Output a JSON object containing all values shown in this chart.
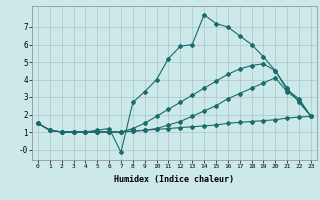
{
  "title": "",
  "xlabel": "Humidex (Indice chaleur)",
  "xlim": [
    -0.5,
    23.5
  ],
  "ylim": [
    -0.6,
    8.2
  ],
  "xticks": [
    0,
    1,
    2,
    3,
    4,
    5,
    6,
    7,
    8,
    9,
    10,
    11,
    12,
    13,
    14,
    15,
    16,
    17,
    18,
    19,
    20,
    21,
    22,
    23
  ],
  "yticks": [
    0,
    1,
    2,
    3,
    4,
    5,
    6,
    7
  ],
  "ytick_labels": [
    "-0",
    "1",
    "2",
    "3",
    "4",
    "5",
    "6",
    "7"
  ],
  "bg_color": "#cde8e8",
  "line_color": "#1a6b6b",
  "grid_color": "#a8c8c8",
  "lines": [
    {
      "x": [
        0,
        1,
        2,
        3,
        4,
        5,
        6,
        7,
        8,
        9,
        10,
        11,
        12,
        13,
        14,
        15,
        16,
        17,
        18,
        19,
        20,
        21,
        22,
        23
      ],
      "y": [
        1.5,
        1.1,
        1.0,
        1.0,
        1.0,
        1.0,
        1.0,
        1.0,
        1.05,
        1.1,
        1.15,
        1.2,
        1.25,
        1.3,
        1.35,
        1.4,
        1.5,
        1.55,
        1.6,
        1.65,
        1.7,
        1.8,
        1.85,
        1.9
      ]
    },
    {
      "x": [
        0,
        1,
        2,
        3,
        4,
        5,
        6,
        7,
        8,
        9,
        10,
        11,
        12,
        13,
        14,
        15,
        16,
        17,
        18,
        19,
        20,
        21,
        22,
        23
      ],
      "y": [
        1.5,
        1.1,
        1.0,
        1.0,
        1.0,
        1.1,
        1.2,
        -0.15,
        2.7,
        3.3,
        4.0,
        5.2,
        5.9,
        6.0,
        7.7,
        7.2,
        7.0,
        6.5,
        6.0,
        5.3,
        4.5,
        3.5,
        2.7,
        1.9
      ]
    },
    {
      "x": [
        0,
        1,
        2,
        3,
        4,
        5,
        6,
        7,
        8,
        9,
        10,
        11,
        12,
        13,
        14,
        15,
        16,
        17,
        18,
        19,
        20,
        21,
        22,
        23
      ],
      "y": [
        1.5,
        1.1,
        1.0,
        1.0,
        1.0,
        1.0,
        1.0,
        1.0,
        1.2,
        1.5,
        1.9,
        2.3,
        2.7,
        3.1,
        3.5,
        3.9,
        4.3,
        4.6,
        4.8,
        4.9,
        4.5,
        3.4,
        2.9,
        1.9
      ]
    },
    {
      "x": [
        0,
        1,
        2,
        3,
        4,
        5,
        6,
        7,
        8,
        9,
        10,
        11,
        12,
        13,
        14,
        15,
        16,
        17,
        18,
        19,
        20,
        21,
        22,
        23
      ],
      "y": [
        1.5,
        1.1,
        1.0,
        1.0,
        1.0,
        1.0,
        1.0,
        1.0,
        1.05,
        1.1,
        1.2,
        1.4,
        1.6,
        1.9,
        2.2,
        2.5,
        2.9,
        3.2,
        3.5,
        3.8,
        4.1,
        3.3,
        2.8,
        1.9
      ]
    }
  ]
}
